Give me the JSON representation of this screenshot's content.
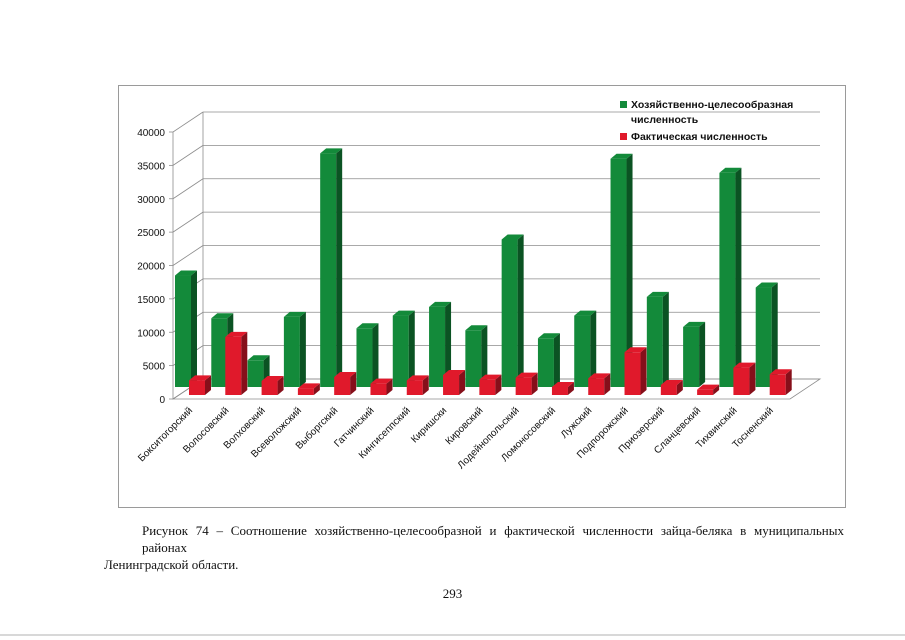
{
  "chart_data": {
    "type": "bar",
    "title": "",
    "xlabel": "",
    "ylabel": "",
    "ylim": [
      0,
      40000
    ],
    "yticks": [
      0,
      5000,
      10000,
      15000,
      20000,
      25000,
      30000,
      35000,
      40000
    ],
    "grid": true,
    "legend_position": "top-right",
    "categories": [
      "Бокситогорский",
      "Волосовский",
      "Волховский",
      "Всеволожский",
      "Выборгский",
      "Гатчинский",
      "Кингисеппский",
      "Киришски",
      "Кировский",
      "Лодейнопольский",
      "Ломоносовский",
      "Лужский",
      "Подпорожский",
      "Приозерский",
      "Сланцевский",
      "Тихвинский",
      "Тосненский"
    ],
    "series": [
      {
        "name": "Хозяйственно-целесообразная численность",
        "color": "#138a3a",
        "values": [
          16700,
          10300,
          4000,
          10500,
          35000,
          8800,
          10700,
          12000,
          8500,
          22100,
          7300,
          10700,
          34200,
          13500,
          9000,
          32100,
          14900
        ]
      },
      {
        "name": "Фактическая численность",
        "color": "#e0192b",
        "values": [
          2200,
          8700,
          2100,
          1000,
          2700,
          1700,
          2200,
          3000,
          2300,
          2600,
          1200,
          2500,
          6400,
          1500,
          800,
          4100,
          3100
        ]
      }
    ]
  },
  "legend": {
    "items": [
      {
        "label_line1": "Хозяйственно-целесообразная",
        "label_line2": "численность",
        "color": "#138a3a"
      },
      {
        "label_line1": "Фактическая численность",
        "label_line2": "",
        "color": "#e0192b"
      }
    ]
  },
  "caption": {
    "line1": "Рисунок 74 – Соотношение хозяйственно-целесообразной и фактической численности зайца-беляка в муниципальных районах",
    "line2": "Ленинградской области."
  },
  "page_number": "293"
}
